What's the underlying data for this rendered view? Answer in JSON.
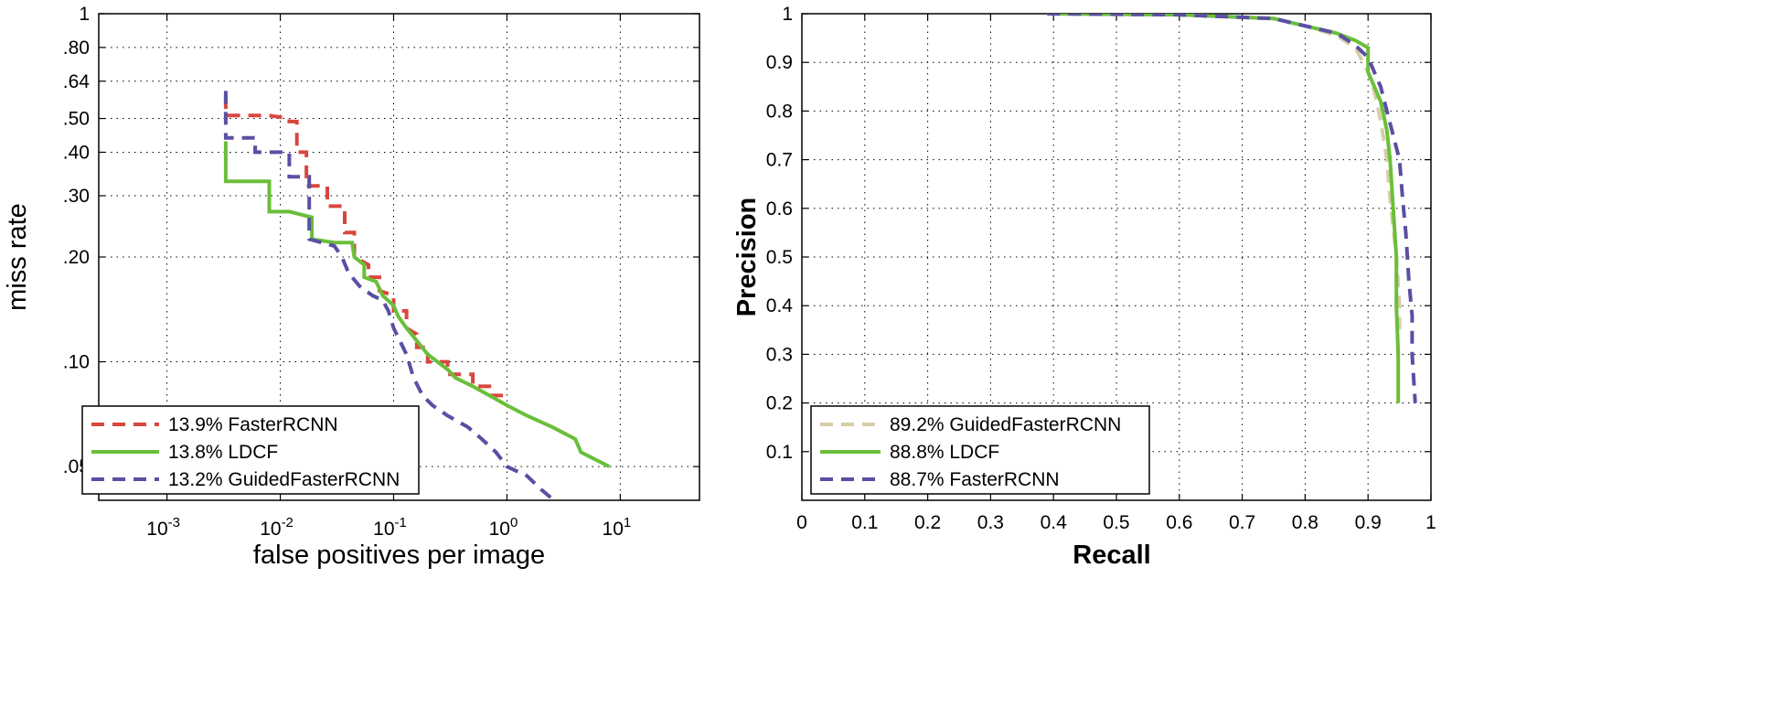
{
  "chart_data": [
    {
      "type": "line",
      "xscale": "log",
      "yscale": "log",
      "xlabel": "false positives per image",
      "ylabel": "miss rate",
      "xlim": [
        0.00025,
        50
      ],
      "ylim": [
        0.04,
        1
      ],
      "xticks": [
        0.001,
        0.01,
        0.1,
        1,
        10
      ],
      "xtick_labels": [
        {
          "base": "10",
          "exp": "-3"
        },
        {
          "base": "10",
          "exp": "-2"
        },
        {
          "base": "10",
          "exp": "-1"
        },
        {
          "base": "10",
          "exp": "0"
        },
        {
          "base": "10",
          "exp": "1"
        }
      ],
      "yticks": [
        0.05,
        0.1,
        0.2,
        0.3,
        0.4,
        0.5,
        0.64,
        0.8,
        1
      ],
      "ytick_labels": [
        ".05",
        ".10",
        ".20",
        ".30",
        ".40",
        ".50",
        ".64",
        ".80",
        "1"
      ],
      "grid": true,
      "legend_position": "bottom-left",
      "series": [
        {
          "name": "13.9% FasterRCNN",
          "color": "#d9463e",
          "dash": "dashed",
          "points": [
            [
              0.0033,
              0.58
            ],
            [
              0.0033,
              0.51
            ],
            [
              0.008,
              0.51
            ],
            [
              0.012,
              0.5
            ],
            [
              0.012,
              0.49
            ],
            [
              0.014,
              0.49
            ],
            [
              0.014,
              0.4
            ],
            [
              0.017,
              0.4
            ],
            [
              0.017,
              0.32
            ],
            [
              0.026,
              0.32
            ],
            [
              0.026,
              0.28
            ],
            [
              0.037,
              0.28
            ],
            [
              0.037,
              0.235
            ],
            [
              0.045,
              0.235
            ],
            [
              0.045,
              0.2
            ],
            [
              0.06,
              0.19
            ],
            [
              0.06,
              0.175
            ],
            [
              0.075,
              0.175
            ],
            [
              0.075,
              0.16
            ],
            [
              0.1,
              0.155
            ],
            [
              0.1,
              0.14
            ],
            [
              0.13,
              0.14
            ],
            [
              0.13,
              0.125
            ],
            [
              0.16,
              0.12
            ],
            [
              0.16,
              0.11
            ],
            [
              0.2,
              0.11
            ],
            [
              0.2,
              0.1
            ],
            [
              0.3,
              0.1
            ],
            [
              0.3,
              0.092
            ],
            [
              0.5,
              0.092
            ],
            [
              0.5,
              0.085
            ],
            [
              0.7,
              0.085
            ],
            [
              0.7,
              0.08
            ],
            [
              0.97,
              0.08
            ]
          ]
        },
        {
          "name": "13.8% LDCF",
          "color": "#6abf3a",
          "dash": "solid",
          "points": [
            [
              0.0033,
              0.43
            ],
            [
              0.0033,
              0.33
            ],
            [
              0.008,
              0.33
            ],
            [
              0.008,
              0.27
            ],
            [
              0.012,
              0.27
            ],
            [
              0.019,
              0.26
            ],
            [
              0.019,
              0.225
            ],
            [
              0.03,
              0.22
            ],
            [
              0.043,
              0.22
            ],
            [
              0.045,
              0.2
            ],
            [
              0.055,
              0.19
            ],
            [
              0.055,
              0.175
            ],
            [
              0.07,
              0.17
            ],
            [
              0.08,
              0.155
            ],
            [
              0.1,
              0.145
            ],
            [
              0.11,
              0.135
            ],
            [
              0.13,
              0.125
            ],
            [
              0.16,
              0.115
            ],
            [
              0.2,
              0.105
            ],
            [
              0.3,
              0.095
            ],
            [
              0.35,
              0.09
            ],
            [
              0.5,
              0.085
            ],
            [
              0.7,
              0.08
            ],
            [
              1.0,
              0.075
            ],
            [
              1.5,
              0.07
            ],
            [
              2.5,
              0.065
            ],
            [
              4.0,
              0.06
            ],
            [
              4.5,
              0.055
            ],
            [
              8.0,
              0.05
            ]
          ]
        },
        {
          "name": "13.2% GuidedFasterRCNN",
          "color": "#5a4fa3",
          "dash": "dashed",
          "points": [
            [
              0.0033,
              0.6
            ],
            [
              0.0033,
              0.44
            ],
            [
              0.006,
              0.44
            ],
            [
              0.006,
              0.4
            ],
            [
              0.012,
              0.4
            ],
            [
              0.012,
              0.34
            ],
            [
              0.018,
              0.34
            ],
            [
              0.018,
              0.225
            ],
            [
              0.03,
              0.215
            ],
            [
              0.035,
              0.2
            ],
            [
              0.04,
              0.18
            ],
            [
              0.05,
              0.165
            ],
            [
              0.065,
              0.155
            ],
            [
              0.08,
              0.15
            ],
            [
              0.09,
              0.14
            ],
            [
              0.1,
              0.125
            ],
            [
              0.13,
              0.105
            ],
            [
              0.15,
              0.09
            ],
            [
              0.18,
              0.08
            ],
            [
              0.22,
              0.075
            ],
            [
              0.3,
              0.07
            ],
            [
              0.45,
              0.065
            ],
            [
              0.6,
              0.06
            ],
            [
              0.8,
              0.055
            ],
            [
              1.0,
              0.05
            ],
            [
              1.5,
              0.047
            ],
            [
              2.0,
              0.043
            ],
            [
              2.6,
              0.04
            ]
          ]
        }
      ]
    },
    {
      "type": "line",
      "xlabel": "Recall",
      "ylabel": "Precision",
      "xlim": [
        0,
        1
      ],
      "ylim": [
        0,
        1
      ],
      "xticks": [
        0,
        0.1,
        0.2,
        0.3,
        0.4,
        0.5,
        0.6,
        0.7,
        0.8,
        0.9,
        1
      ],
      "xtick_labels": [
        "0",
        "0.1",
        "0.2",
        "0.3",
        "0.4",
        "0.5",
        "0.6",
        "0.7",
        "0.8",
        "0.9",
        "1"
      ],
      "yticks": [
        0.1,
        0.2,
        0.3,
        0.4,
        0.5,
        0.6,
        0.7,
        0.8,
        0.9,
        1
      ],
      "ytick_labels": [
        "0.1",
        "0.2",
        "0.3",
        "0.4",
        "0.5",
        "0.6",
        "0.7",
        "0.8",
        "0.9",
        "1"
      ],
      "grid": true,
      "legend_position": "bottom-left",
      "series": [
        {
          "name": "89.2% GuidedFasterRCNN",
          "color": "#d8cda6",
          "dash": "dashed",
          "points": [
            [
              0.39,
              1.0
            ],
            [
              0.6,
              0.998
            ],
            [
              0.75,
              0.99
            ],
            [
              0.8,
              0.975
            ],
            [
              0.85,
              0.955
            ],
            [
              0.88,
              0.93
            ],
            [
              0.9,
              0.88
            ],
            [
              0.91,
              0.84
            ],
            [
              0.92,
              0.78
            ],
            [
              0.93,
              0.7
            ],
            [
              0.935,
              0.62
            ],
            [
              0.945,
              0.5
            ],
            [
              0.95,
              0.4
            ],
            [
              0.95,
              0.35
            ]
          ]
        },
        {
          "name": "88.8% LDCF",
          "color": "#6abf3a",
          "dash": "solid",
          "points": [
            [
              0.39,
              1.0
            ],
            [
              0.6,
              0.998
            ],
            [
              0.75,
              0.99
            ],
            [
              0.8,
              0.975
            ],
            [
              0.85,
              0.96
            ],
            [
              0.88,
              0.945
            ],
            [
              0.9,
              0.93
            ],
            [
              0.9,
              0.88
            ],
            [
              0.91,
              0.85
            ],
            [
              0.92,
              0.82
            ],
            [
              0.93,
              0.76
            ],
            [
              0.935,
              0.7
            ],
            [
              0.94,
              0.6
            ],
            [
              0.945,
              0.5
            ],
            [
              0.945,
              0.4
            ],
            [
              0.948,
              0.3
            ],
            [
              0.948,
              0.2
            ]
          ]
        },
        {
          "name": "88.7% FasterRCNN",
          "color": "#5a4fa3",
          "dash": "dashed",
          "points": [
            [
              0.39,
              1.0
            ],
            [
              0.6,
              0.998
            ],
            [
              0.75,
              0.99
            ],
            [
              0.8,
              0.975
            ],
            [
              0.85,
              0.96
            ],
            [
              0.88,
              0.935
            ],
            [
              0.9,
              0.91
            ],
            [
              0.91,
              0.88
            ],
            [
              0.92,
              0.85
            ],
            [
              0.93,
              0.8
            ],
            [
              0.94,
              0.75
            ],
            [
              0.95,
              0.7
            ],
            [
              0.955,
              0.62
            ],
            [
              0.96,
              0.55
            ],
            [
              0.965,
              0.45
            ],
            [
              0.97,
              0.38
            ],
            [
              0.97,
              0.3
            ],
            [
              0.975,
              0.2
            ]
          ]
        }
      ]
    }
  ]
}
